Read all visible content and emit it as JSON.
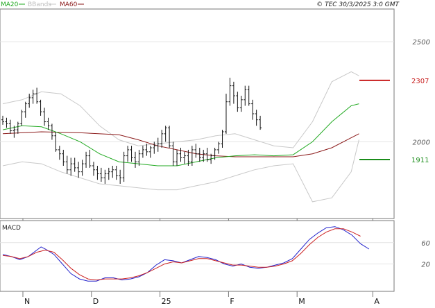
{
  "chart_data": [
    {
      "type": "line",
      "title": "",
      "legend": [
        {
          "label": "MA20",
          "color": "#22aa22"
        },
        {
          "label": "BBands",
          "color": "#c8c8c8"
        },
        {
          "label": "MA60",
          "color": "#8b1a1a"
        }
      ],
      "copyright": "© TEC 30/3/2025 3:0 GMT",
      "yticks": [
        {
          "value": 2500,
          "label": "2500"
        },
        {
          "value": 2000,
          "label": "2000"
        }
      ],
      "ylim": [
        1620,
        2660
      ],
      "xticks": [
        {
          "x": 0,
          "label": "N"
        },
        {
          "x": 19,
          "label": "D"
        },
        {
          "x": 38,
          "label": "25"
        },
        {
          "x": 57,
          "label": "F"
        },
        {
          "x": 76,
          "label": "M"
        },
        {
          "x": 97,
          "label": "A"
        }
      ],
      "resistance": {
        "value": 2307,
        "label": "2307",
        "color": "#c81e1e"
      },
      "support": {
        "value": 1911,
        "label": "1911",
        "color": "#1a8c1a"
      },
      "series": [
        {
          "name": "MA20",
          "color": "#22aa22",
          "points": [
            [
              0,
              2060
            ],
            [
              5,
              2080
            ],
            [
              10,
              2075
            ],
            [
              15,
              2040
            ],
            [
              20,
              2000
            ],
            [
              25,
              1940
            ],
            [
              30,
              1900
            ],
            [
              35,
              1890
            ],
            [
              40,
              1880
            ],
            [
              45,
              1880
            ],
            [
              50,
              1900
            ],
            [
              55,
              1920
            ],
            [
              60,
              1930
            ],
            [
              65,
              1935
            ],
            [
              70,
              1930
            ],
            [
              75,
              1935
            ],
            [
              80,
              2000
            ],
            [
              85,
              2100
            ],
            [
              90,
              2180
            ],
            [
              92,
              2190
            ]
          ]
        },
        {
          "name": "MA60",
          "color": "#8b1a1a",
          "points": [
            [
              0,
              2040
            ],
            [
              10,
              2050
            ],
            [
              20,
              2045
            ],
            [
              30,
              2035
            ],
            [
              35,
              2010
            ],
            [
              40,
              1980
            ],
            [
              45,
              1960
            ],
            [
              50,
              1940
            ],
            [
              55,
              1930
            ],
            [
              60,
              1925
            ],
            [
              65,
              1925
            ],
            [
              70,
              1925
            ],
            [
              75,
              1925
            ],
            [
              80,
              1940
            ],
            [
              85,
              1970
            ],
            [
              90,
              2020
            ],
            [
              92,
              2040
            ]
          ]
        },
        {
          "name": "BBands upper",
          "color": "#c8c8c8",
          "points": [
            [
              0,
              2190
            ],
            [
              5,
              2210
            ],
            [
              10,
              2250
            ],
            [
              15,
              2240
            ],
            [
              20,
              2180
            ],
            [
              25,
              2080
            ],
            [
              30,
              2010
            ],
            [
              35,
              1980
            ],
            [
              40,
              1990
            ],
            [
              45,
              2000
            ],
            [
              50,
              2010
            ],
            [
              55,
              2030
            ],
            [
              60,
              2040
            ],
            [
              65,
              2010
            ],
            [
              70,
              1980
            ],
            [
              75,
              1970
            ],
            [
              80,
              2100
            ],
            [
              85,
              2300
            ],
            [
              90,
              2350
            ],
            [
              92,
              2330
            ]
          ]
        },
        {
          "name": "BBands lower",
          "color": "#c8c8c8",
          "points": [
            [
              0,
              1880
            ],
            [
              5,
              1900
            ],
            [
              10,
              1890
            ],
            [
              15,
              1850
            ],
            [
              20,
              1820
            ],
            [
              25,
              1790
            ],
            [
              30,
              1780
            ],
            [
              35,
              1770
            ],
            [
              40,
              1760
            ],
            [
              45,
              1760
            ],
            [
              50,
              1780
            ],
            [
              55,
              1800
            ],
            [
              60,
              1830
            ],
            [
              65,
              1860
            ],
            [
              70,
              1880
            ],
            [
              75,
              1890
            ],
            [
              80,
              1700
            ],
            [
              85,
              1720
            ],
            [
              90,
              1850
            ],
            [
              92,
              2010
            ]
          ]
        }
      ],
      "ohlc": [
        [
          2110,
          2130,
          2085,
          2100
        ],
        [
          2100,
          2120,
          2070,
          2090
        ],
        [
          2090,
          2110,
          2040,
          2055
        ],
        [
          2055,
          2080,
          2020,
          2060
        ],
        [
          2060,
          2100,
          2040,
          2090
        ],
        [
          2090,
          2160,
          2080,
          2150
        ],
        [
          2150,
          2200,
          2120,
          2190
        ],
        [
          2190,
          2240,
          2170,
          2220
        ],
        [
          2220,
          2260,
          2190,
          2240
        ],
        [
          2240,
          2270,
          2190,
          2200
        ],
        [
          2200,
          2210,
          2130,
          2150
        ],
        [
          2150,
          2170,
          2080,
          2100
        ],
        [
          2100,
          2120,
          2060,
          2080
        ],
        [
          2080,
          2090,
          2010,
          2030
        ],
        [
          2030,
          2050,
          1950,
          1960
        ],
        [
          1960,
          1980,
          1910,
          1940
        ],
        [
          1940,
          1960,
          1880,
          1900
        ],
        [
          1900,
          1930,
          1840,
          1860
        ],
        [
          1860,
          1920,
          1830,
          1890
        ],
        [
          1890,
          1920,
          1850,
          1870
        ],
        [
          1870,
          1900,
          1820,
          1850
        ],
        [
          1850,
          1910,
          1830,
          1890
        ],
        [
          1890,
          1950,
          1870,
          1930
        ],
        [
          1930,
          1960,
          1870,
          1880
        ],
        [
          1880,
          1900,
          1830,
          1860
        ],
        [
          1860,
          1880,
          1810,
          1840
        ],
        [
          1840,
          1870,
          1800,
          1820
        ],
        [
          1820,
          1860,
          1790,
          1840
        ],
        [
          1840,
          1870,
          1810,
          1850
        ],
        [
          1850,
          1880,
          1820,
          1860
        ],
        [
          1860,
          1880,
          1810,
          1830
        ],
        [
          1830,
          1860,
          1790,
          1820
        ],
        [
          1820,
          1950,
          1800,
          1930
        ],
        [
          1930,
          1980,
          1900,
          1960
        ],
        [
          1960,
          1980,
          1900,
          1920
        ],
        [
          1920,
          1950,
          1870,
          1900
        ],
        [
          1900,
          1960,
          1880,
          1940
        ],
        [
          1940,
          1980,
          1920,
          1960
        ],
        [
          1960,
          1990,
          1930,
          1950
        ],
        [
          1950,
          1980,
          1920,
          1970
        ],
        [
          1970,
          2000,
          1940,
          1980
        ],
        [
          1980,
          2020,
          1950,
          1990
        ],
        [
          1990,
          2060,
          1970,
          2040
        ],
        [
          2040,
          2080,
          2000,
          2070
        ],
        [
          2070,
          2080,
          1970,
          1980
        ],
        [
          1980,
          2000,
          1880,
          1900
        ],
        [
          1900,
          1960,
          1880,
          1940
        ],
        [
          1940,
          1970,
          1900,
          1920
        ],
        [
          1920,
          1950,
          1890,
          1930
        ],
        [
          1930,
          1960,
          1880,
          1900
        ],
        [
          1900,
          1980,
          1880,
          1960
        ],
        [
          1960,
          1990,
          1920,
          1940
        ],
        [
          1940,
          1970,
          1900,
          1920
        ],
        [
          1920,
          1960,
          1900,
          1940
        ],
        [
          1940,
          1970,
          1900,
          1910
        ],
        [
          1910,
          1940,
          1890,
          1930
        ],
        [
          1930,
          1970,
          1910,
          1960
        ],
        [
          1960,
          2000,
          1940,
          1990
        ],
        [
          1990,
          2060,
          1970,
          2050
        ],
        [
          2050,
          2240,
          2040,
          2200
        ],
        [
          2200,
          2320,
          2180,
          2280
        ],
        [
          2280,
          2300,
          2190,
          2230
        ],
        [
          2230,
          2250,
          2150,
          2170
        ],
        [
          2170,
          2230,
          2150,
          2210
        ],
        [
          2210,
          2280,
          2180,
          2260
        ],
        [
          2260,
          2280,
          2180,
          2190
        ],
        [
          2190,
          2210,
          2110,
          2140
        ],
        [
          2140,
          2160,
          2080,
          2110
        ],
        [
          2110,
          2130,
          2060,
          2070
        ]
      ]
    },
    {
      "type": "line",
      "title": "MACD",
      "ylim": [
        -30,
        100
      ],
      "yticks": [
        {
          "value": 60,
          "label": "60"
        },
        {
          "value": 20,
          "label": "20"
        }
      ],
      "series": [
        {
          "name": "MACD",
          "color": "#2222cc",
          "points": [
            [
              0,
              38
            ],
            [
              2,
              34
            ],
            [
              4,
              28
            ],
            [
              6,
              34
            ],
            [
              8,
              46
            ],
            [
              9,
              52
            ],
            [
              10,
              48
            ],
            [
              12,
              38
            ],
            [
              14,
              20
            ],
            [
              16,
              2
            ],
            [
              18,
              -8
            ],
            [
              20,
              -12
            ],
            [
              22,
              -12
            ],
            [
              24,
              -6
            ],
            [
              26,
              -6
            ],
            [
              28,
              -10
            ],
            [
              30,
              -8
            ],
            [
              32,
              -4
            ],
            [
              34,
              4
            ],
            [
              36,
              18
            ],
            [
              38,
              28
            ],
            [
              40,
              26
            ],
            [
              42,
              22
            ],
            [
              44,
              28
            ],
            [
              46,
              34
            ],
            [
              48,
              32
            ],
            [
              50,
              28
            ],
            [
              52,
              20
            ],
            [
              54,
              16
            ],
            [
              56,
              20
            ],
            [
              58,
              14
            ],
            [
              60,
              12
            ],
            [
              62,
              14
            ],
            [
              64,
              18
            ],
            [
              66,
              22
            ],
            [
              68,
              30
            ],
            [
              70,
              48
            ],
            [
              72,
              66
            ],
            [
              74,
              78
            ],
            [
              76,
              88
            ],
            [
              78,
              90
            ],
            [
              80,
              84
            ],
            [
              82,
              74
            ],
            [
              84,
              58
            ],
            [
              86,
              48
            ]
          ]
        },
        {
          "name": "Signal",
          "color": "#cc2222",
          "points": [
            [
              0,
              36
            ],
            [
              2,
              34
            ],
            [
              4,
              30
            ],
            [
              6,
              34
            ],
            [
              8,
              42
            ],
            [
              10,
              46
            ],
            [
              12,
              42
            ],
            [
              14,
              28
            ],
            [
              16,
              12
            ],
            [
              18,
              0
            ],
            [
              20,
              -8
            ],
            [
              22,
              -10
            ],
            [
              24,
              -8
            ],
            [
              26,
              -8
            ],
            [
              28,
              -8
            ],
            [
              30,
              -6
            ],
            [
              32,
              -2
            ],
            [
              34,
              4
            ],
            [
              36,
              12
            ],
            [
              38,
              20
            ],
            [
              40,
              24
            ],
            [
              42,
              22
            ],
            [
              44,
              26
            ],
            [
              46,
              30
            ],
            [
              48,
              30
            ],
            [
              50,
              26
            ],
            [
              52,
              22
            ],
            [
              54,
              18
            ],
            [
              56,
              18
            ],
            [
              58,
              16
            ],
            [
              60,
              14
            ],
            [
              62,
              14
            ],
            [
              64,
              16
            ],
            [
              66,
              20
            ],
            [
              68,
              26
            ],
            [
              70,
              40
            ],
            [
              72,
              56
            ],
            [
              74,
              70
            ],
            [
              76,
              80
            ],
            [
              78,
              86
            ],
            [
              80,
              86
            ],
            [
              82,
              80
            ],
            [
              84,
              72
            ]
          ]
        }
      ]
    }
  ]
}
